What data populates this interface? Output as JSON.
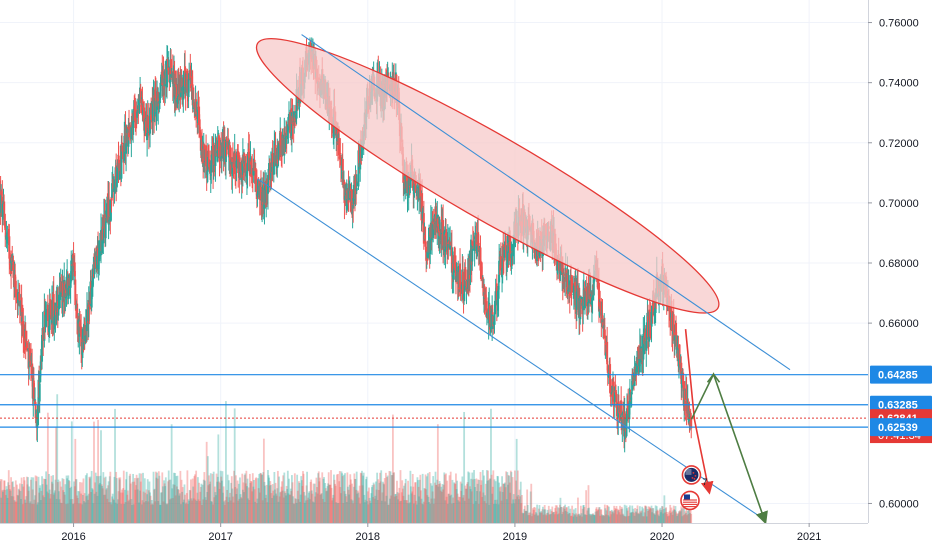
{
  "chart_data": {
    "type": "candlestick",
    "title": "",
    "xlabel": "",
    "ylabel": "",
    "ylim": [
      0.5935,
      0.7675
    ],
    "xlim": [
      2015.5,
      2021.4
    ],
    "x_ticks": [
      {
        "value": 2016.0,
        "label": "2016"
      },
      {
        "value": 2017.0,
        "label": "2017"
      },
      {
        "value": 2018.0,
        "label": "2018"
      },
      {
        "value": 2019.0,
        "label": "2019"
      },
      {
        "value": 2020.0,
        "label": "2020"
      },
      {
        "value": 2021.0,
        "label": "2021"
      }
    ],
    "y_ticks": [
      {
        "value": 0.6,
        "label": "0.60000"
      },
      {
        "value": 0.66,
        "label": "0.66000"
      },
      {
        "value": 0.68,
        "label": "0.68000"
      },
      {
        "value": 0.7,
        "label": "0.70000"
      },
      {
        "value": 0.72,
        "label": "0.72000"
      },
      {
        "value": 0.74,
        "label": "0.74000"
      },
      {
        "value": 0.76,
        "label": "0.76000"
      }
    ],
    "price_path": [
      [
        2015.5,
        0.702
      ],
      [
        2015.58,
        0.68
      ],
      [
        2015.68,
        0.652
      ],
      [
        2015.75,
        0.63
      ],
      [
        2015.8,
        0.66
      ],
      [
        2015.9,
        0.668
      ],
      [
        2016.0,
        0.678
      ],
      [
        2016.03,
        0.66
      ],
      [
        2016.06,
        0.652
      ],
      [
        2016.15,
        0.68
      ],
      [
        2016.25,
        0.7
      ],
      [
        2016.35,
        0.72
      ],
      [
        2016.45,
        0.735
      ],
      [
        2016.5,
        0.725
      ],
      [
        2016.6,
        0.74
      ],
      [
        2016.65,
        0.745
      ],
      [
        2016.7,
        0.738
      ],
      [
        2016.8,
        0.74
      ],
      [
        2016.9,
        0.712
      ],
      [
        2016.95,
        0.715
      ],
      [
        2017.0,
        0.72
      ],
      [
        2017.1,
        0.712
      ],
      [
        2017.2,
        0.713
      ],
      [
        2017.3,
        0.7
      ],
      [
        2017.35,
        0.715
      ],
      [
        2017.45,
        0.722
      ],
      [
        2017.55,
        0.74
      ],
      [
        2017.6,
        0.752
      ],
      [
        2017.65,
        0.742
      ],
      [
        2017.7,
        0.738
      ],
      [
        2017.8,
        0.722
      ],
      [
        2017.85,
        0.7
      ],
      [
        2017.9,
        0.7
      ],
      [
        2017.95,
        0.718
      ],
      [
        2018.0,
        0.735
      ],
      [
        2018.05,
        0.74
      ],
      [
        2018.1,
        0.736
      ],
      [
        2018.15,
        0.742
      ],
      [
        2018.2,
        0.738
      ],
      [
        2018.25,
        0.705
      ],
      [
        2018.3,
        0.71
      ],
      [
        2018.35,
        0.705
      ],
      [
        2018.4,
        0.682
      ],
      [
        2018.45,
        0.695
      ],
      [
        2018.5,
        0.69
      ],
      [
        2018.6,
        0.678
      ],
      [
        2018.65,
        0.672
      ],
      [
        2018.7,
        0.68
      ],
      [
        2018.75,
        0.69
      ],
      [
        2018.8,
        0.665
      ],
      [
        2018.85,
        0.66
      ],
      [
        2018.9,
        0.68
      ],
      [
        2019.0,
        0.69
      ],
      [
        2019.05,
        0.695
      ],
      [
        2019.1,
        0.692
      ],
      [
        2019.15,
        0.685
      ],
      [
        2019.2,
        0.688
      ],
      [
        2019.25,
        0.69
      ],
      [
        2019.3,
        0.678
      ],
      [
        2019.35,
        0.675
      ],
      [
        2019.4,
        0.67
      ],
      [
        2019.45,
        0.665
      ],
      [
        2019.5,
        0.67
      ],
      [
        2019.55,
        0.675
      ],
      [
        2019.6,
        0.66
      ],
      [
        2019.65,
        0.638
      ],
      [
        2019.7,
        0.632
      ],
      [
        2019.75,
        0.625
      ],
      [
        2019.78,
        0.636
      ],
      [
        2019.82,
        0.648
      ],
      [
        2019.87,
        0.652
      ],
      [
        2019.92,
        0.662
      ],
      [
        2019.97,
        0.673
      ],
      [
        2020.0,
        0.676
      ],
      [
        2020.04,
        0.668
      ],
      [
        2020.08,
        0.659
      ],
      [
        2020.12,
        0.645
      ],
      [
        2020.16,
        0.634
      ],
      [
        2020.2,
        0.628
      ]
    ],
    "volume_baseline": 0.625,
    "annotations": {
      "price_levels": [
        {
          "value": 0.64285,
          "label": "0.64285",
          "style": "blue"
        },
        {
          "value": 0.63285,
          "label": "0.63285",
          "style": "blue"
        },
        {
          "value": 0.62841,
          "label": "0.62841",
          "style": "red-current"
        },
        {
          "value": 0.62539,
          "label": "0.62539",
          "style": "blue"
        }
      ],
      "countdown": "07:41:34",
      "current_price_line": 0.62841,
      "channel_upper": {
        "x": [
          2017.55,
          2020.87
        ],
        "y": [
          0.756,
          0.6445
        ]
      },
      "channel_lower": {
        "x": [
          2017.25,
          2020.7
        ],
        "y": [
          0.708,
          0.5945
        ]
      },
      "resistance_ellipse": {
        "start": [
          2017.25,
          0.753
        ],
        "end": [
          2020.38,
          0.665
        ]
      },
      "red_arrow": {
        "x": [
          2020.16,
          2020.22,
          2020.32
        ],
        "y": [
          0.658,
          0.628,
          0.604
        ]
      },
      "green_arrow": {
        "x": [
          2020.2,
          2020.35,
          2020.7
        ],
        "y": [
          0.628,
          0.643,
          0.594
        ]
      },
      "event_badges": [
        {
          "icon": "flag-nz-icon",
          "count": "7",
          "x": 2020.2,
          "y": 0.6095
        },
        {
          "icon": "flag-us-icon",
          "count": "",
          "x": 2020.19,
          "y": 0.601
        }
      ]
    },
    "colors": {
      "up": "#26a69a",
      "down": "#ef5350",
      "channel": "#3d8fd6",
      "level_line": "#1e88e5",
      "current": "#e53935",
      "ellipse_fill": "#f7c9c9",
      "ellipse_stroke": "#e53935",
      "red_arrow": "#e53935",
      "green_arrow": "#4e7d43"
    }
  }
}
